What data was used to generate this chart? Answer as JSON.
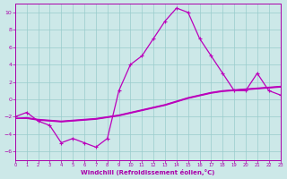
{
  "series_main": {
    "y": [
      -2.0,
      -1.5,
      -2.5,
      -3.0,
      -5.0,
      -4.5,
      -5.0,
      -5.5,
      -4.5,
      1.0,
      4.0,
      5.0,
      7.0,
      9.0,
      10.5,
      10.0,
      7.0,
      5.0,
      3.0,
      1.0,
      1.0,
      3.0,
      1.0,
      0.5
    ],
    "color": "#bb00bb",
    "linewidth": 0.9,
    "marker": "+",
    "markersize": 3.5,
    "markeredgewidth": 0.8
  },
  "series_flat": [
    [
      -2.2,
      -2.1,
      -2.3,
      -2.4,
      -2.5,
      -2.4,
      -2.3,
      -2.2,
      -2.0,
      -1.8,
      -1.5,
      -1.2,
      -0.9,
      -0.6,
      -0.2,
      0.2,
      0.5,
      0.8,
      1.0,
      1.1,
      1.2,
      1.3,
      1.4,
      1.5
    ],
    [
      -2.2,
      -2.15,
      -2.35,
      -2.45,
      -2.55,
      -2.45,
      -2.35,
      -2.25,
      -2.05,
      -1.85,
      -1.55,
      -1.25,
      -0.95,
      -0.65,
      -0.25,
      0.15,
      0.45,
      0.75,
      0.95,
      1.05,
      1.15,
      1.25,
      1.35,
      1.45
    ],
    [
      -2.2,
      -2.2,
      -2.4,
      -2.5,
      -2.6,
      -2.5,
      -2.4,
      -2.3,
      -2.1,
      -1.9,
      -1.6,
      -1.3,
      -1.0,
      -0.7,
      -0.3,
      0.1,
      0.4,
      0.7,
      0.9,
      1.0,
      1.1,
      1.2,
      1.3,
      1.4
    ]
  ],
  "flat_color": "#bb00bb",
  "flat_linewidth": 0.8,
  "xlabel": "Windchill (Refroidissement éolien,°C)",
  "xlim": [
    0,
    23
  ],
  "ylim": [
    -7,
    11
  ],
  "yticks": [
    -6,
    -4,
    -2,
    0,
    2,
    4,
    6,
    8,
    10
  ],
  "xticks": [
    0,
    1,
    2,
    3,
    4,
    5,
    6,
    7,
    8,
    9,
    10,
    11,
    12,
    13,
    14,
    15,
    16,
    17,
    18,
    19,
    20,
    21,
    22,
    23
  ],
  "background_color": "#cce8e8",
  "grid_color": "#99cccc",
  "line_color": "#aa00aa",
  "tick_label_color": "#aa00aa",
  "xlabel_color": "#aa00aa",
  "figsize": [
    3.2,
    2.0
  ],
  "dpi": 100
}
